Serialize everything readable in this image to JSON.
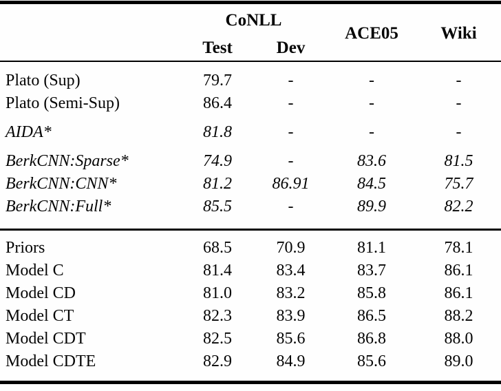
{
  "table": {
    "header": {
      "group": "CoNLL",
      "columns": [
        "Test",
        "Dev",
        "ACE05",
        "Wiki"
      ]
    },
    "sections": [
      {
        "rows": [
          {
            "label": "Plato (Sup)",
            "italic": false,
            "values": [
              "79.7",
              "-",
              "-",
              "-"
            ]
          },
          {
            "label": "Plato (Semi-Sup)",
            "italic": false,
            "values": [
              "86.4",
              "-",
              "-",
              "-"
            ]
          }
        ]
      },
      {
        "rows": [
          {
            "label": "AIDA*",
            "italic": true,
            "values": [
              "81.8",
              "-",
              "-",
              "-"
            ]
          }
        ]
      },
      {
        "rows": [
          {
            "label": "BerkCNN:Sparse*",
            "italic": true,
            "values": [
              "74.9",
              "-",
              "83.6",
              "81.5"
            ]
          },
          {
            "label": "BerkCNN:CNN*",
            "italic": true,
            "values": [
              "81.2",
              "86.91",
              "84.5",
              "75.7"
            ]
          },
          {
            "label": "BerkCNN:Full*",
            "italic": true,
            "values": [
              "85.5",
              "-",
              "89.9",
              "82.2"
            ]
          }
        ]
      },
      {
        "rows": [
          {
            "label": "Priors",
            "italic": false,
            "values": [
              "68.5",
              "70.9",
              "81.1",
              "78.1"
            ]
          },
          {
            "label": "Model C",
            "italic": false,
            "values": [
              "81.4",
              "83.4",
              "83.7",
              "86.1"
            ]
          },
          {
            "label": "Model CD",
            "italic": false,
            "values": [
              "81.0",
              "83.2",
              "85.8",
              "86.1"
            ]
          },
          {
            "label": "Model CT",
            "italic": false,
            "values": [
              "82.3",
              "83.9",
              "86.5",
              "88.2"
            ]
          },
          {
            "label": "Model CDT",
            "italic": false,
            "values": [
              "82.5",
              "85.6",
              "86.8",
              "88.0"
            ]
          },
          {
            "label": "Model CDTE",
            "italic": false,
            "values": [
              "82.9",
              "84.9",
              "85.6",
              "89.0"
            ]
          }
        ]
      }
    ]
  }
}
